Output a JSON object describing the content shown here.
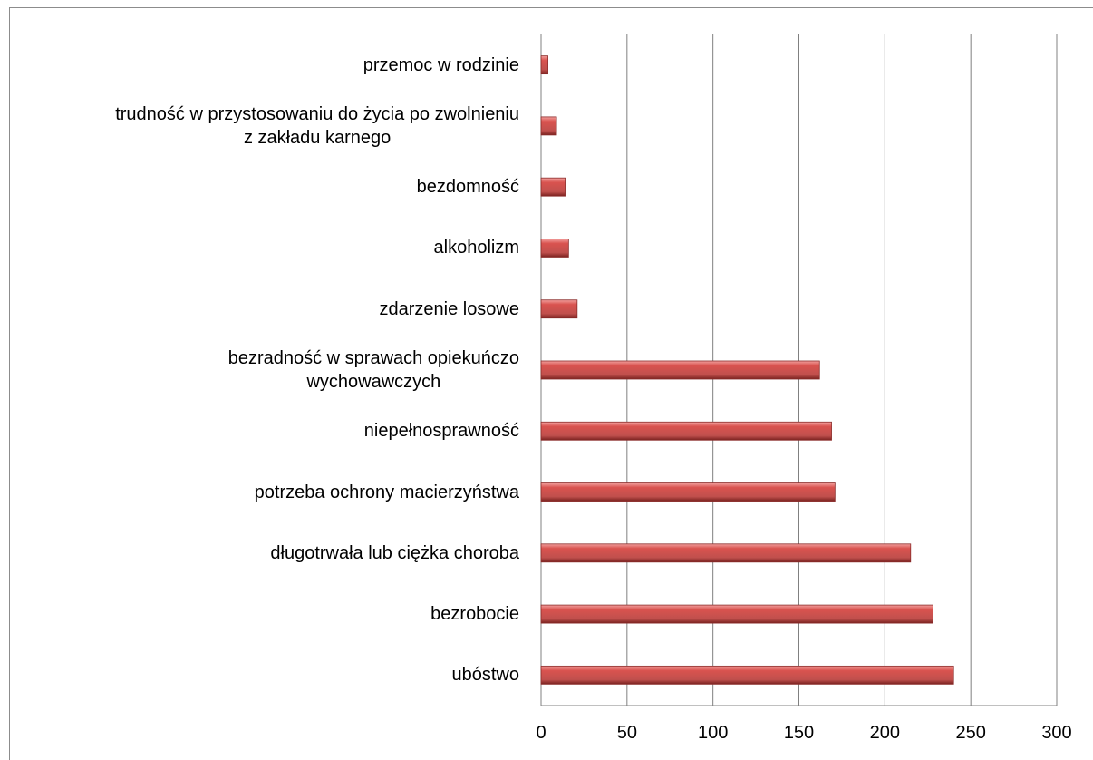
{
  "chart_data": {
    "type": "barh",
    "categories": [
      "przemoc w rodzinie",
      "trudność w przystosowaniu do życia po zwolnieniu\nz zakładu karnego",
      "bezdomność",
      "alkoholizm",
      "zdarzenie losowe",
      "bezradność w sprawach opiekuńczo\nwychowawczych",
      "niepełnosprawność",
      "potrzeba ochrony macierzyństwa",
      "długotrwała lub ciężka choroba",
      "bezrobocie",
      "ubóstwo"
    ],
    "values": [
      4,
      9,
      14,
      16,
      21,
      162,
      169,
      171,
      215,
      228,
      240
    ],
    "color": "#c0504d",
    "xlim": [
      0,
      300
    ],
    "xticks": [
      0,
      50,
      100,
      150,
      200,
      250,
      300
    ],
    "grid": true
  }
}
